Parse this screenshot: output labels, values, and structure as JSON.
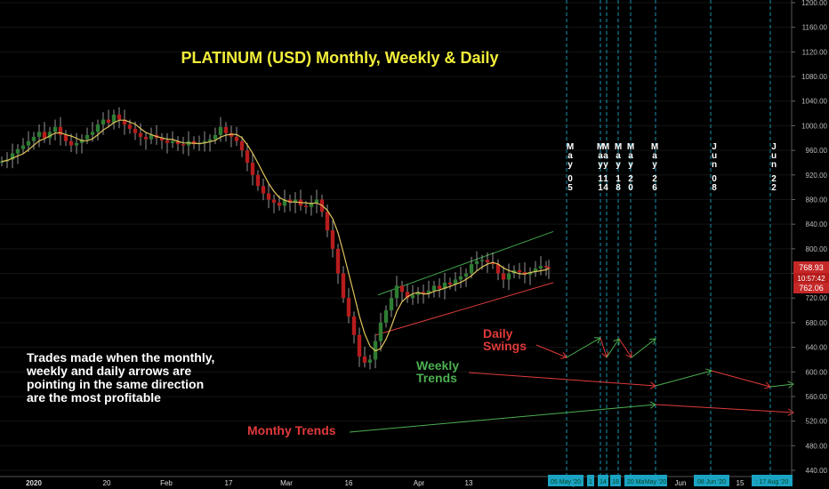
{
  "chart_data": {
    "type": "candlestick",
    "title": "PLATINUM (USD) Monthly, Weekly & Daily",
    "y_axis": {
      "position": "right",
      "range": [
        440,
        1200
      ],
      "ticks": [
        "1200.00",
        "1160.00",
        "1120.00",
        "1080.00",
        "1040.00",
        "1000.00",
        "960.00",
        "920.00",
        "880.00",
        "840.00",
        "800.00",
        "760.00",
        "720.00",
        "680.00",
        "640.00",
        "600.00",
        "560.00",
        "520.00",
        "480.00",
        "440.00"
      ]
    },
    "x_axis": {
      "labels": [
        "2020",
        "20",
        "Feb",
        "17",
        "Mar",
        "16",
        "Apr",
        "13",
        "May",
        "Jun",
        "15"
      ]
    },
    "price_labels": {
      "upper": "768.93",
      "timer": "10:57:42",
      "lower": "762.06"
    },
    "bottom_date_tags": [
      "05 May '20",
      "1",
      "14",
      "18",
      "20 May '20",
      "May '20",
      "08 Jun '20",
      ": 17 Aug '20"
    ],
    "vertical_date_markers": [
      {
        "month": "May",
        "day": "05",
        "day_digits": [
          "0",
          "5"
        ]
      },
      {
        "month": "May",
        "day": "11",
        "day_digits": [
          "1",
          "1"
        ]
      },
      {
        "month": "May",
        "day": "14",
        "day_digits": [
          "1",
          "4"
        ]
      },
      {
        "month": "May",
        "day": "18",
        "day_digits": [
          "1",
          "8"
        ]
      },
      {
        "month": "May",
        "day": "20",
        "day_digits": [
          "2",
          "0"
        ]
      },
      {
        "month": "May",
        "day": "26",
        "day_digits": [
          "2",
          "6"
        ]
      },
      {
        "month": "Jun",
        "day": "08",
        "day_digits": [
          "0",
          "8"
        ]
      },
      {
        "month": "Jun",
        "day": "22",
        "day_digits": [
          "2",
          "2"
        ]
      }
    ],
    "annotations": {
      "daily_swings": [
        "Daily",
        "Swings"
      ],
      "weekly_trends": [
        "Weekly",
        "Trends"
      ],
      "monthly_trends": "Monthy Trends",
      "note_lines": [
        "Trades made when the monthly,",
        "weekly and daily arrows are",
        "pointing in the same direction",
        "are the most profitable"
      ]
    },
    "price_path": [
      [
        0,
        942
      ],
      [
        4,
        945
      ],
      [
        8,
        955
      ],
      [
        12,
        962
      ],
      [
        16,
        968
      ],
      [
        20,
        975
      ],
      [
        24,
        982
      ],
      [
        28,
        990
      ],
      [
        32,
        980
      ],
      [
        36,
        990
      ],
      [
        40,
        998
      ],
      [
        44,
        985
      ],
      [
        48,
        975
      ],
      [
        52,
        968
      ],
      [
        56,
        972
      ],
      [
        60,
        978
      ],
      [
        64,
        985
      ],
      [
        68,
        990
      ],
      [
        72,
        1002
      ],
      [
        76,
        1010
      ],
      [
        80,
        1005
      ],
      [
        84,
        1018
      ],
      [
        88,
        1010
      ],
      [
        92,
        1002
      ],
      [
        96,
        995
      ],
      [
        100,
        988
      ],
      [
        104,
        982
      ],
      [
        108,
        978
      ],
      [
        112,
        985
      ],
      [
        116,
        980
      ],
      [
        120,
        976
      ],
      [
        124,
        972
      ],
      [
        128,
        975
      ],
      [
        132,
        970
      ],
      [
        136,
        968
      ],
      [
        140,
        975
      ],
      [
        144,
        970
      ],
      [
        148,
        972
      ],
      [
        152,
        975
      ],
      [
        156,
        978
      ],
      [
        160,
        985
      ],
      [
        164,
        998
      ],
      [
        168,
        988
      ],
      [
        172,
        982
      ],
      [
        176,
        975
      ],
      [
        180,
        960
      ],
      [
        184,
        940
      ],
      [
        188,
        920
      ],
      [
        192,
        902
      ],
      [
        196,
        890
      ],
      [
        200,
        880
      ],
      [
        204,
        875
      ],
      [
        208,
        870
      ],
      [
        212,
        880
      ],
      [
        216,
        875
      ],
      [
        220,
        880
      ],
      [
        224,
        870
      ],
      [
        228,
        868
      ],
      [
        232,
        875
      ],
      [
        236,
        880
      ],
      [
        240,
        860
      ],
      [
        244,
        830
      ],
      [
        248,
        800
      ],
      [
        252,
        760
      ],
      [
        256,
        720
      ],
      [
        260,
        690
      ],
      [
        264,
        660
      ],
      [
        268,
        625
      ],
      [
        272,
        615
      ],
      [
        276,
        620
      ],
      [
        280,
        650
      ],
      [
        284,
        680
      ],
      [
        288,
        700
      ],
      [
        292,
        720
      ],
      [
        296,
        740
      ],
      [
        300,
        730
      ],
      [
        304,
        720
      ],
      [
        308,
        725
      ],
      [
        312,
        730
      ],
      [
        316,
        728
      ],
      [
        320,
        732
      ],
      [
        324,
        740
      ],
      [
        328,
        735
      ],
      [
        332,
        745
      ],
      [
        336,
        742
      ],
      [
        340,
        750
      ],
      [
        344,
        755
      ],
      [
        348,
        760
      ],
      [
        352,
        775
      ],
      [
        356,
        780
      ],
      [
        360,
        782
      ],
      [
        364,
        778
      ],
      [
        368,
        775
      ],
      [
        372,
        760
      ],
      [
        376,
        750
      ],
      [
        380,
        760
      ],
      [
        384,
        765
      ],
      [
        388,
        762
      ],
      [
        392,
        758
      ],
      [
        396,
        762
      ],
      [
        400,
        768
      ],
      [
        404,
        772
      ],
      [
        408,
        770
      ],
      [
        410,
        768
      ]
    ]
  }
}
